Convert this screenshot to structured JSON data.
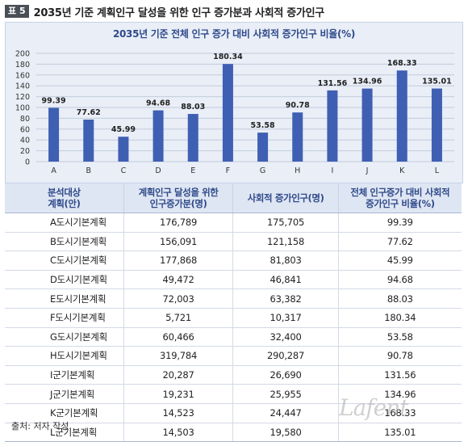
{
  "header": {
    "badge": "표 5",
    "title": "2035년 기준 계획인구 달성을 위한 인구 증가분과 사회적 증가인구"
  },
  "chart_data": {
    "type": "bar",
    "title": "2035년 기준 전체 인구 증가 대비 사회적 증가인구 비율(%)",
    "categories": [
      "A",
      "B",
      "C",
      "D",
      "E",
      "F",
      "G",
      "H",
      "I",
      "J",
      "K",
      "L"
    ],
    "values": [
      99.39,
      77.62,
      45.99,
      94.68,
      88.03,
      180.34,
      53.58,
      90.78,
      131.56,
      134.96,
      168.33,
      135.01
    ],
    "value_labels": [
      "99.39",
      "77.62",
      "45.99",
      "94.68",
      "88.03",
      "180.34",
      "53.58",
      "90.78",
      "131.56",
      "134.96",
      "168.33",
      "135.01"
    ],
    "yticks": [
      "0",
      "20",
      "40",
      "60",
      "80",
      "100",
      "120",
      "140",
      "160",
      "180",
      "200"
    ],
    "ylim": [
      0,
      200
    ],
    "grid": true,
    "bar_color": "#3f5fb3"
  },
  "table": {
    "headers": [
      [
        "분석대상",
        "계획(안)"
      ],
      [
        "계획인구 달성을 위한",
        "인구증가분(명)"
      ],
      [
        "사회적 증가인구(명)"
      ],
      [
        "전체 인구증가 대비 사회적",
        "증가인구 비율(%)"
      ]
    ],
    "rows": [
      [
        "A도시기본계획",
        "176,789",
        "175,705",
        "99.39"
      ],
      [
        "B도시기본계획",
        "156,091",
        "121,158",
        "77.62"
      ],
      [
        "C도시기본계획",
        "177,868",
        "81,803",
        "45.99"
      ],
      [
        "D도시기본계획",
        "49,472",
        "46,841",
        "94.68"
      ],
      [
        "E도시기본계획",
        "72,003",
        "63,382",
        "88.03"
      ],
      [
        "F도시기본계획",
        "5,721",
        "10,317",
        "180.34"
      ],
      [
        "G도시기본계획",
        "60,466",
        "32,400",
        "53.58"
      ],
      [
        "H도시기본계획",
        "319,784",
        "290,287",
        "90.78"
      ],
      [
        "I군기본계획",
        "20,287",
        "26,690",
        "131.56"
      ],
      [
        "J군기본계획",
        "19,231",
        "25,955",
        "134.96"
      ],
      [
        "K군기본계획",
        "14,523",
        "24,447",
        "168.33"
      ],
      [
        "L군기본계획",
        "14,503",
        "19,580",
        "135.01"
      ]
    ]
  },
  "source": "출처: 저자 작성.",
  "watermark": "Lafent"
}
